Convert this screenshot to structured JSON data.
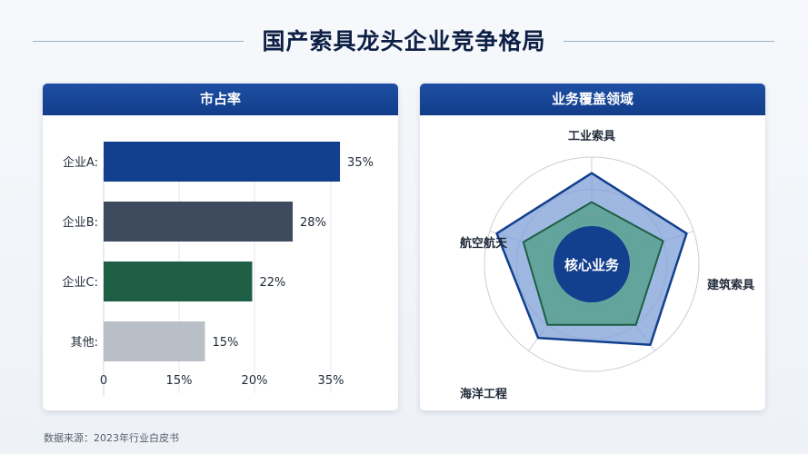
{
  "title": "国产索具龙头企业竞争格局",
  "source": "数据来源：2023年行业白皮书",
  "colors": {
    "navy": "#123f8e",
    "slate": "#3e4b5e",
    "green": "#1d5e45",
    "gray": "#b9bfc7",
    "outer_fill": "#7fa0d8",
    "inner_fill": "#4f9f85",
    "center": "#123f8e"
  },
  "chart_data": [
    {
      "type": "bar",
      "orientation": "horizontal",
      "title": "市占率",
      "categories": [
        "企业A:",
        "企业B:",
        "企业C:",
        "其他:"
      ],
      "values": [
        35,
        28,
        22,
        15
      ],
      "value_labels": [
        "35%",
        "28%",
        "22%",
        "15%"
      ],
      "x_tick_labels": [
        "0",
        "15%",
        "20%",
        "35%"
      ],
      "grid": true
    },
    {
      "type": "radar",
      "title": "业务覆盖领域",
      "center_label": "核心业务",
      "axes": [
        "工业索具",
        "建筑索具",
        "航空航天",
        "海洋工程",
        "航空航天"
      ],
      "series": [
        {
          "values": [
            0.85,
            0.93,
            0.93,
            0.85,
            0.93
          ]
        },
        {
          "values": [
            0.58,
            0.7,
            0.7,
            0.7,
            0.67
          ]
        }
      ]
    }
  ]
}
